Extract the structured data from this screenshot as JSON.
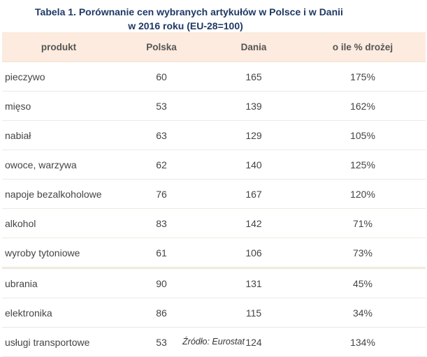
{
  "title_line1": "Tabela 1. Porównanie cen wybranych artykułów w Polsce i w Danii",
  "title_line2": "w 2016 roku (EU-28=100)",
  "headers": [
    "produkt",
    "Polska",
    "Dania",
    "o ile % drożej"
  ],
  "rows": [
    [
      "pieczywo",
      "60",
      "165",
      "175%"
    ],
    [
      "mięso",
      "53",
      "139",
      "162%"
    ],
    [
      "nabiał",
      "63",
      "129",
      "105%"
    ],
    [
      "owoce, warzywa",
      "62",
      "140",
      "125%"
    ],
    [
      "napoje bezalkoholowe",
      "76",
      "167",
      "120%"
    ],
    [
      "alkohol",
      "83",
      "142",
      "71%"
    ],
    [
      "wyroby tytoniowe",
      "61",
      "106",
      "73%"
    ],
    [
      "ubrania",
      "90",
      "131",
      "45%"
    ],
    [
      "elektronika",
      "86",
      "115",
      "34%"
    ],
    [
      "usługi transportowe",
      "53",
      "124",
      "134%"
    ]
  ],
  "source": "Źródło: Eurostat"
}
